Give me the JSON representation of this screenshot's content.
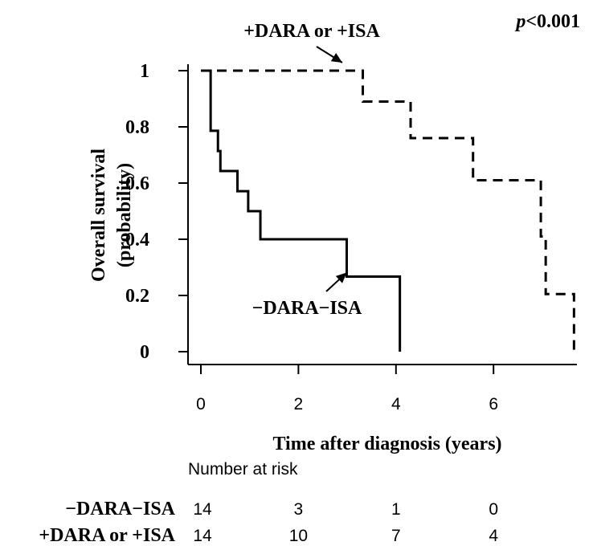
{
  "chart_data": {
    "type": "line",
    "subtype": "kaplan-meier",
    "xlabel": "Time after diagnosis (years)",
    "ylabel_line1": "Overall survival",
    "ylabel_line2": "(probability)",
    "p_value_prefix": "p",
    "p_value_suffix": "<0.001",
    "xlim": [
      0,
      7.8
    ],
    "ylim": [
      0,
      1
    ],
    "x_ticks": [
      0,
      2,
      4,
      6
    ],
    "x_tick_labels": [
      "0",
      "2",
      "4",
      "6"
    ],
    "y_ticks": [
      0,
      0.2,
      0.4,
      0.6,
      0.8,
      1
    ],
    "y_tick_labels": [
      "0",
      "0.2",
      "0.4",
      "0.6",
      "0.8",
      "1"
    ],
    "series": [
      {
        "name": "−DARA−ISA",
        "style": "solid",
        "color": "#000000",
        "steps": [
          [
            0,
            1.0
          ],
          [
            0.2,
            0.786
          ],
          [
            0.35,
            0.714
          ],
          [
            0.4,
            0.643
          ],
          [
            0.75,
            0.571
          ],
          [
            0.97,
            0.5
          ],
          [
            1.22,
            0.4
          ],
          [
            2.99,
            0.267
          ],
          [
            4.08,
            0.0
          ]
        ],
        "end_x": 4.08
      },
      {
        "name": "+DARA or +ISA",
        "style": "dashed",
        "color": "#000000",
        "steps": [
          [
            0,
            1.0
          ],
          [
            3.32,
            0.89
          ],
          [
            4.3,
            0.76
          ],
          [
            5.58,
            0.61
          ],
          [
            6.97,
            0.41
          ],
          [
            7.07,
            0.205
          ],
          [
            7.65,
            0.0
          ]
        ],
        "end_x": 7.65
      }
    ],
    "annotations": [
      {
        "text": "+DARA or +ISA",
        "target_series": 1,
        "point": [
          3.0,
          1.0
        ]
      },
      {
        "text": "−DARA−ISA",
        "target_series": 0,
        "point": [
          2.99,
          0.267
        ]
      }
    ],
    "risk_table": {
      "title": "Number at risk",
      "times": [
        0,
        2,
        4,
        6
      ],
      "rows": [
        {
          "label": "−DARA−ISA",
          "counts": [
            "14",
            "3",
            "1",
            "0"
          ]
        },
        {
          "label": "+DARA or +ISA",
          "counts": [
            "14",
            "10",
            "7",
            "4"
          ]
        }
      ]
    }
  }
}
